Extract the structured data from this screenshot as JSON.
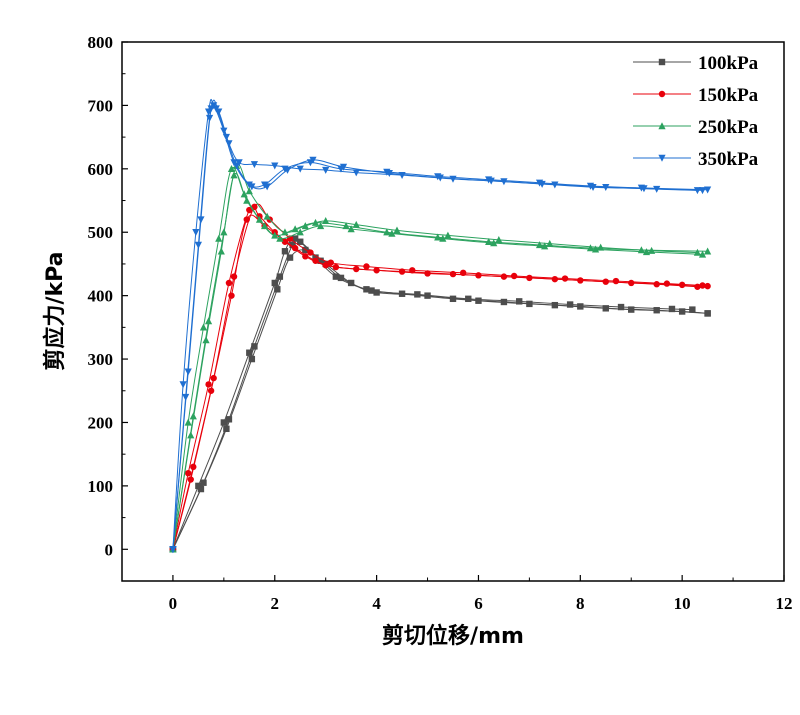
{
  "chart_data": {
    "type": "line",
    "title": "",
    "xlabel": "剪切位移/mm",
    "ylabel": "剪应力/kPa",
    "xlim": [
      -1,
      12
    ],
    "ylim": [
      -50,
      800
    ],
    "xticks": [
      0,
      2,
      4,
      6,
      8,
      10,
      12
    ],
    "yticks": [
      0,
      100,
      200,
      300,
      400,
      500,
      600,
      700,
      800
    ],
    "legend_position": "top-right",
    "series": [
      {
        "name": "100kPa",
        "color": "#4d4d4d",
        "marker": "square",
        "runs": [
          {
            "x": [
              0,
              0.5,
              1,
              1.5,
              2,
              2.2,
              2.4,
              2.8,
              3.2,
              3.8,
              4.5,
              5.5,
              6.5,
              7.5,
              8.5,
              9.5,
              10.5
            ],
            "y": [
              0,
              100,
              200,
              310,
              420,
              470,
              490,
              460,
              430,
              410,
              403,
              395,
              390,
              385,
              380,
              377,
              372
            ]
          },
          {
            "x": [
              0,
              0.55,
              1.05,
              1.55,
              2.05,
              2.3,
              2.6,
              3.0,
              3.5,
              4.0,
              5.0,
              6.0,
              7.0,
              8.0,
              9.0,
              10.0,
              10.5
            ],
            "y": [
              0,
              95,
              190,
              300,
              410,
              460,
              472,
              450,
              420,
              405,
              400,
              392,
              387,
              383,
              378,
              375,
              372
            ]
          },
          {
            "x": [
              0,
              0.6,
              1.1,
              1.6,
              2.1,
              2.35,
              2.5,
              2.9,
              3.3,
              3.9,
              4.8,
              5.8,
              6.8,
              7.8,
              8.8,
              9.8,
              10.2
            ],
            "y": [
              0,
              105,
              205,
              320,
              430,
              480,
              485,
              455,
              428,
              408,
              402,
              395,
              391,
              386,
              382,
              379,
              378
            ]
          }
        ]
      },
      {
        "name": "150kPa",
        "color": "#e8000b",
        "marker": "circle",
        "runs": [
          {
            "x": [
              0,
              0.3,
              0.7,
              1.1,
              1.5,
              1.7,
              2.0,
              2.4,
              2.8,
              3.2,
              4.0,
              5.0,
              6.0,
              7.0,
              8.0,
              9.0,
              10.0,
              10.5
            ],
            "y": [
              0,
              120,
              260,
              420,
              535,
              525,
              500,
              475,
              455,
              445,
              440,
              435,
              432,
              428,
              424,
              420,
              417,
              415
            ]
          },
          {
            "x": [
              0,
              0.35,
              0.75,
              1.15,
              1.45,
              1.8,
              2.2,
              2.6,
              3.0,
              3.6,
              4.5,
              5.5,
              6.5,
              7.5,
              8.5,
              9.5,
              10.3
            ],
            "y": [
              0,
              110,
              250,
              400,
              520,
              510,
              485,
              462,
              448,
              442,
              438,
              434,
              430,
              426,
              422,
              418,
              414
            ]
          },
          {
            "x": [
              0,
              0.4,
              0.8,
              1.2,
              1.6,
              1.9,
              2.3,
              2.7,
              3.1,
              3.8,
              4.7,
              5.7,
              6.7,
              7.7,
              8.7,
              9.7,
              10.4
            ],
            "y": [
              0,
              130,
              270,
              430,
              540,
              520,
              490,
              468,
              452,
              446,
              440,
              436,
              431,
              427,
              423,
              419,
              416
            ]
          }
        ]
      },
      {
        "name": "250kPa",
        "color": "#2ca25f",
        "marker": "triangle-up",
        "runs": [
          {
            "x": [
              0,
              0.3,
              0.6,
              0.9,
              1.15,
              1.4,
              1.7,
              2.0,
              2.4,
              2.8,
              3.4,
              4.2,
              5.2,
              6.2,
              7.2,
              8.2,
              9.2,
              10.5
            ],
            "y": [
              0,
              200,
              350,
              490,
              600,
              560,
              520,
              495,
              505,
              515,
              510,
              500,
              492,
              485,
              480,
              475,
              472,
              470
            ]
          },
          {
            "x": [
              0,
              0.35,
              0.65,
              0.95,
              1.2,
              1.45,
              1.8,
              2.1,
              2.5,
              2.9,
              3.5,
              4.3,
              5.3,
              6.3,
              7.3,
              8.3,
              9.3,
              10.4
            ],
            "y": [
              0,
              180,
              330,
              470,
              590,
              550,
              510,
              490,
              500,
              510,
              505,
              498,
              490,
              483,
              478,
              473,
              469,
              465
            ]
          },
          {
            "x": [
              0,
              0.4,
              0.7,
              1.0,
              1.25,
              1.5,
              1.85,
              2.2,
              2.6,
              3.0,
              3.6,
              4.4,
              5.4,
              6.4,
              7.4,
              8.4,
              9.4,
              10.3
            ],
            "y": [
              0,
              210,
              360,
              500,
              605,
              565,
              525,
              500,
              510,
              518,
              512,
              503,
              495,
              488,
              482,
              476,
              471,
              468
            ]
          }
        ]
      },
      {
        "name": "350kPa",
        "color": "#1f6fd1",
        "marker": "triangle-down",
        "runs": [
          {
            "x": [
              0,
              0.2,
              0.45,
              0.7,
              0.8,
              1.0,
              1.2,
              1.5,
              1.8,
              2.2,
              2.7,
              3.3,
              4.2,
              5.2,
              6.2,
              7.2,
              8.2,
              9.2,
              10.5
            ],
            "y": [
              0,
              260,
              500,
              690,
              700,
              660,
              610,
              575,
              575,
              600,
              610,
              600,
              595,
              588,
              583,
              578,
              573,
              570,
              567
            ]
          },
          {
            "x": [
              0,
              0.25,
              0.5,
              0.72,
              0.85,
              1.05,
              1.25,
              1.55,
              1.85,
              2.25,
              2.75,
              3.35,
              4.25,
              5.25,
              6.25,
              7.25,
              8.25,
              9.25,
              10.4
            ],
            "y": [
              0,
              240,
              480,
              680,
              695,
              650,
              605,
              572,
              572,
              598,
              614,
              603,
              593,
              586,
              581,
              576,
              571,
              569,
              566
            ]
          },
          {
            "x": [
              0,
              0.3,
              0.55,
              0.75,
              0.9,
              1.1,
              1.3,
              1.6,
              2.0,
              2.5,
              3.0,
              3.6,
              4.5,
              5.5,
              6.5,
              7.5,
              8.5,
              9.5,
              10.3
            ],
            "y": [
              0,
              280,
              520,
              695,
              690,
              640,
              610,
              607,
              605,
              600,
              598,
              594,
              590,
              584,
              580,
              575,
              571,
              568,
              566
            ]
          }
        ]
      }
    ]
  }
}
